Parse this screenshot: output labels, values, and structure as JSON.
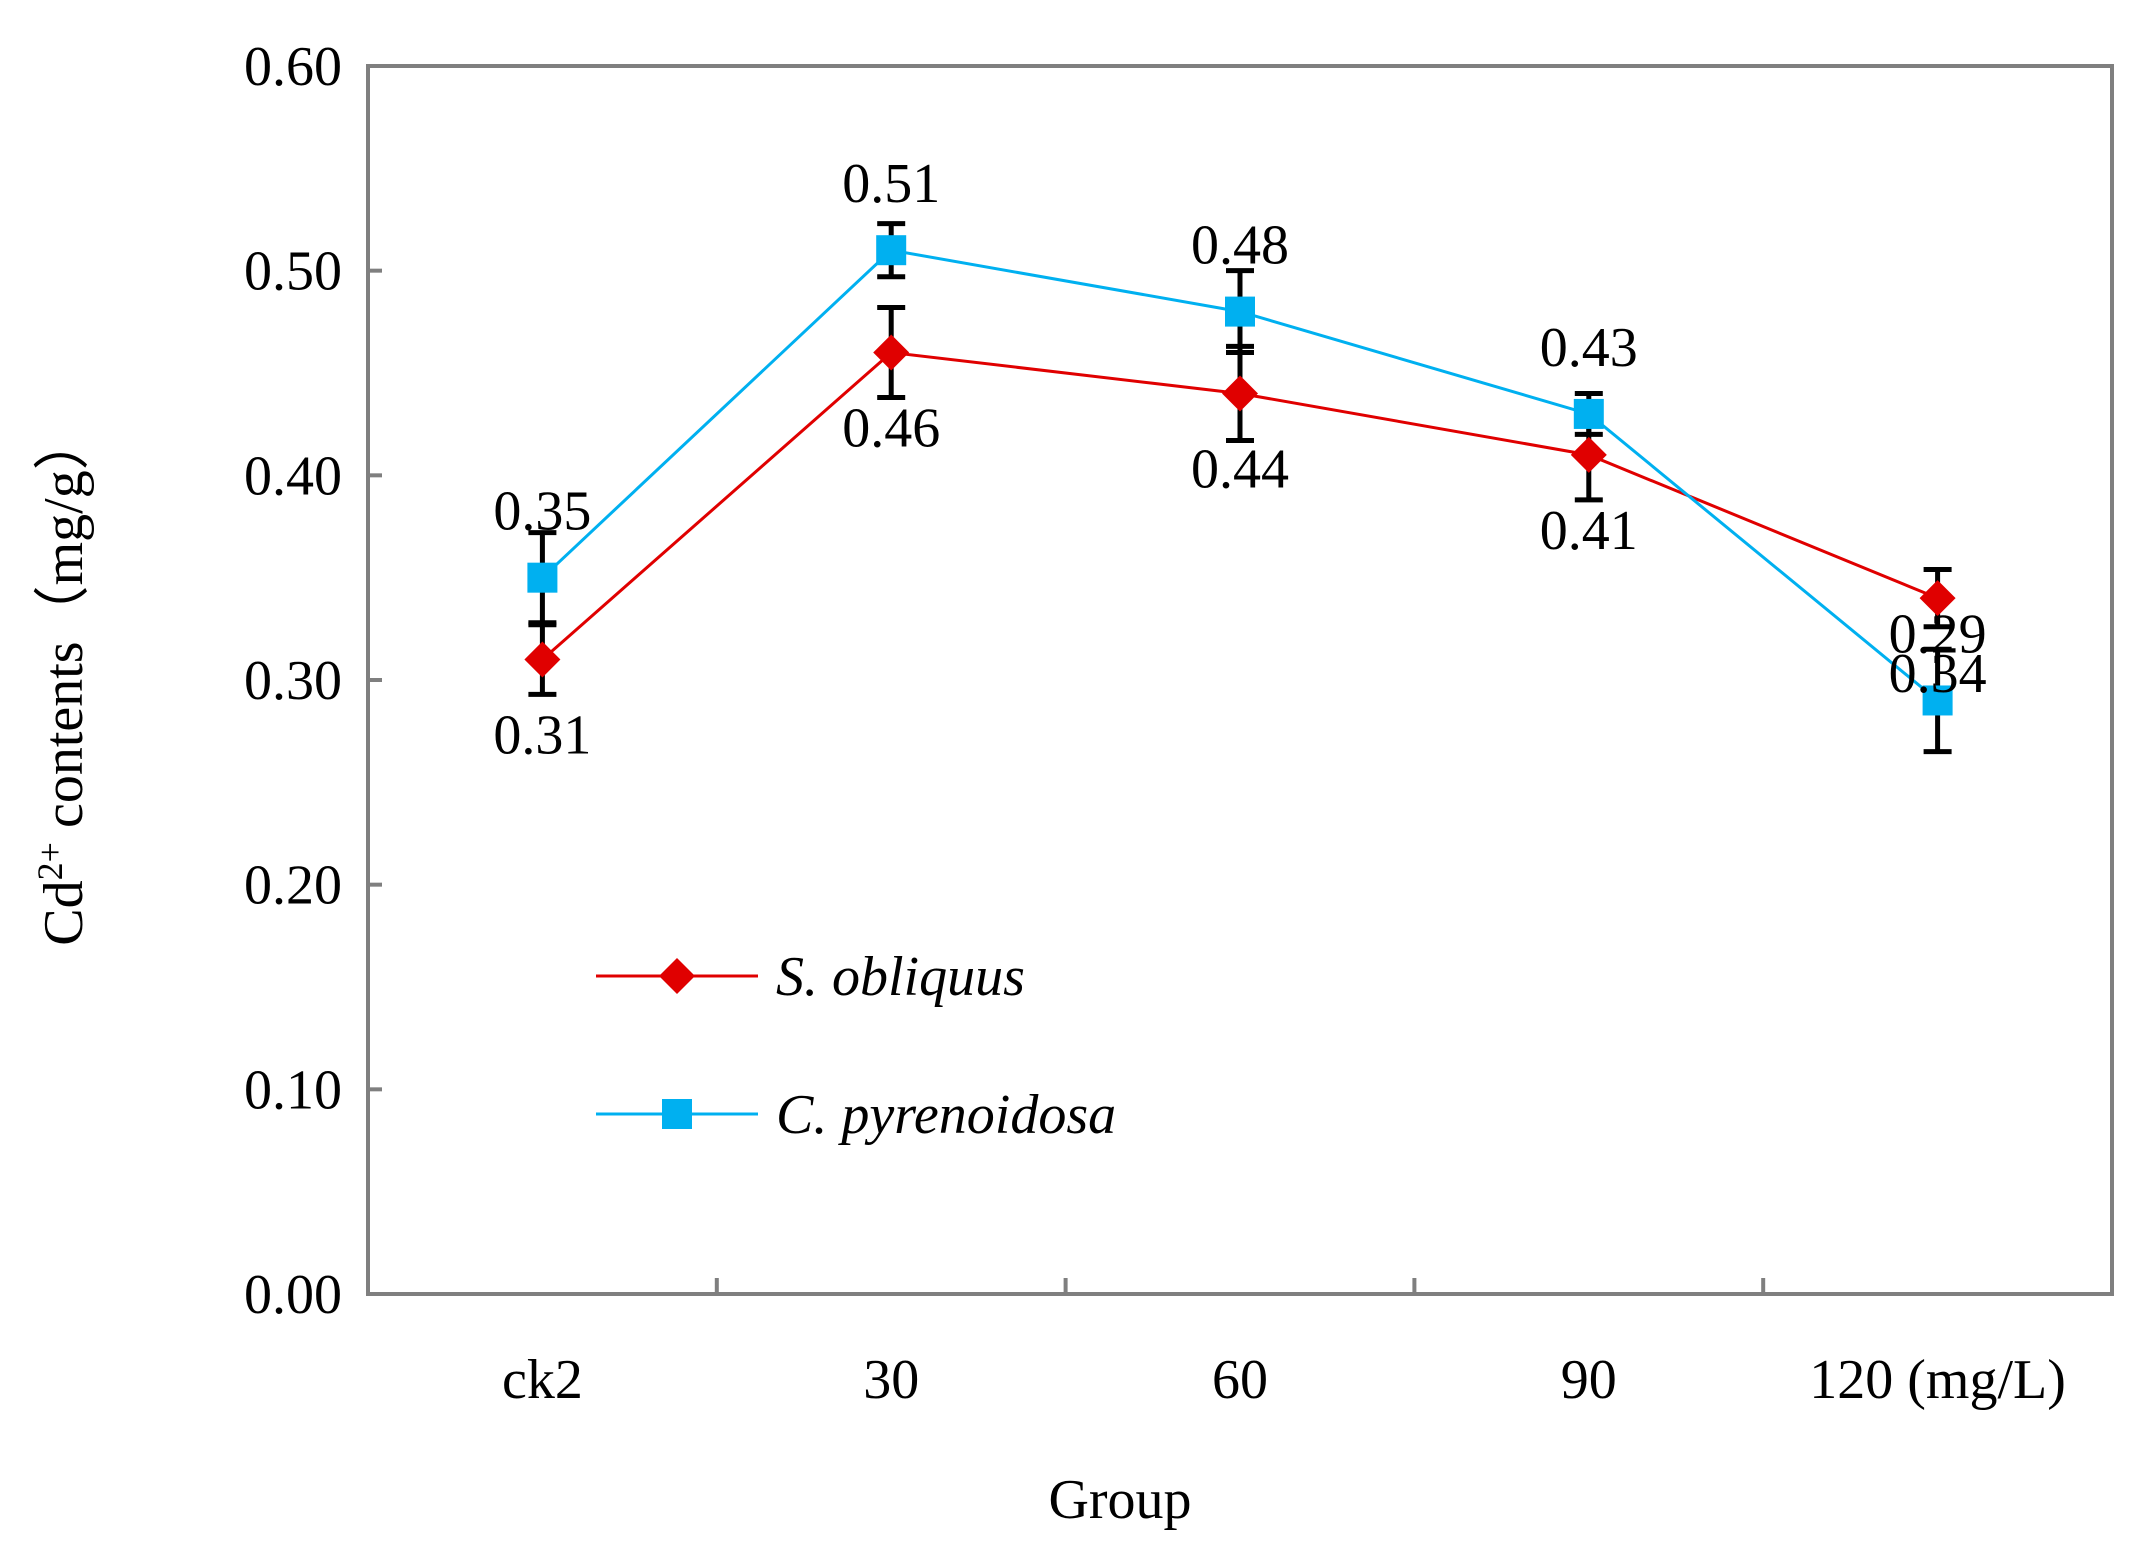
{
  "chart_data": {
    "type": "line",
    "title": "",
    "xlabel": "Group",
    "ylabel": {
      "prefix": "Cd",
      "superscript": "2+",
      "suffix": " contents（mg/g）"
    },
    "categories": [
      "ck2",
      "30",
      "60",
      "90",
      "120 (mg/L)"
    ],
    "ylim": [
      0,
      0.6
    ],
    "yticks": [
      "0.00",
      "0.10",
      "0.20",
      "0.30",
      "0.40",
      "0.50",
      "0.60"
    ],
    "grid": false,
    "legend_position": "bottom-left",
    "series": [
      {
        "name": "S. obliquus",
        "color": "#E00000",
        "marker": "diamond",
        "values": [
          0.31,
          0.46,
          0.44,
          0.41,
          0.34
        ],
        "errors": [
          0.017,
          0.022,
          0.023,
          0.022,
          0.014
        ],
        "labels": [
          "0.31",
          "0.46",
          "0.44",
          "0.41",
          "0.34"
        ]
      },
      {
        "name": "C. pyrenoidosa",
        "color": "#00B0F0",
        "marker": "square",
        "values": [
          0.35,
          0.51,
          0.48,
          0.43,
          0.29
        ],
        "errors": [
          0.022,
          0.013,
          0.02,
          0.01,
          0.025
        ],
        "labels": [
          "0.35",
          "0.51",
          "0.48",
          "0.43",
          "0.29"
        ]
      }
    ]
  }
}
